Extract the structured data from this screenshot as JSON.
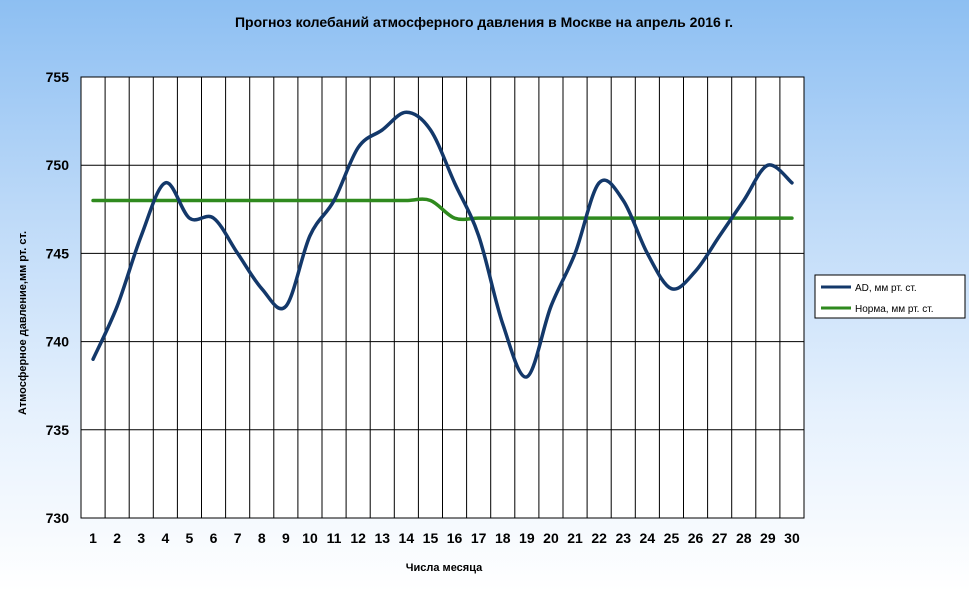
{
  "chart_data": {
    "type": "line",
    "title": "Прогноз колебаний атмосферного давления в Москве на апрель 2016 г.",
    "xlabel": "Числа месяца",
    "ylabel": "Атмосферное давление,мм рт. ст.",
    "categories": [
      "1",
      "2",
      "3",
      "4",
      "5",
      "6",
      "7",
      "8",
      "9",
      "10",
      "11",
      "12",
      "13",
      "14",
      "15",
      "16",
      "17",
      "18",
      "19",
      "20",
      "21",
      "22",
      "23",
      "24",
      "25",
      "26",
      "27",
      "28",
      "29",
      "30"
    ],
    "yticks": [
      "730",
      "735",
      "740",
      "745",
      "750",
      "755"
    ],
    "ylim": [
      730,
      755
    ],
    "grid": true,
    "legend_position": "right",
    "series": [
      {
        "name": "AD, мм рт. ст.",
        "color": "#13386a",
        "values": [
          739,
          742,
          746,
          749,
          747,
          747,
          745,
          743,
          742,
          746,
          748,
          751,
          752,
          753,
          752,
          749,
          746,
          741,
          738,
          742,
          745,
          749,
          748,
          745,
          743,
          744,
          746,
          748,
          750,
          749
        ]
      },
      {
        "name": "Норма, мм рт. ст.",
        "color": "#2f8a1e",
        "values": [
          748,
          748,
          748,
          748,
          748,
          748,
          748,
          748,
          748,
          748,
          748,
          748,
          748,
          748,
          748,
          747,
          747,
          747,
          747,
          747,
          747,
          747,
          747,
          747,
          747,
          747,
          747,
          747,
          747,
          747
        ]
      }
    ]
  }
}
